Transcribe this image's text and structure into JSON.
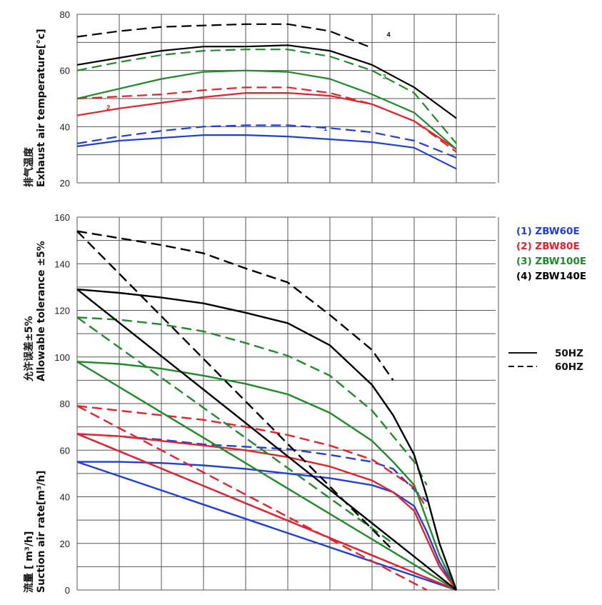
{
  "colors": {
    "1": "#1f3fdc",
    "2": "#e8202a",
    "3": "#1e8a28",
    "4": "#000000"
  },
  "legend": {
    "models": [
      {
        "id": "1",
        "label": "(1)  ZBW60E"
      },
      {
        "id": "2",
        "label": "(2)  ZBW80E"
      },
      {
        "id": "3",
        "label": "(3)  ZBW100E"
      },
      {
        "id": "4",
        "label": "(4)  ZBW140E"
      }
    ],
    "line_styles": [
      {
        "style": "solid",
        "label": "50HZ"
      },
      {
        "style": "dashed",
        "label": "60HZ"
      }
    ]
  },
  "chart_data": [
    {
      "type": "line",
      "title": "",
      "ylabel_cn": "排气温度",
      "ylabel": "Exhaust air temperature[°c]",
      "ylim": [
        20,
        80
      ],
      "yticks": [
        20,
        40,
        60,
        80
      ],
      "x_gridlines": 10,
      "grid": true,
      "curve_labels": [
        "1",
        "2",
        "3",
        "4"
      ],
      "series": [
        {
          "model": "ZBW60E",
          "freq": "50HZ",
          "points": [
            [
              0,
              33
            ],
            [
              1,
              35
            ],
            [
              2,
              36
            ],
            [
              3,
              37
            ],
            [
              4,
              37
            ],
            [
              5,
              36.5
            ],
            [
              6,
              35.5
            ],
            [
              7,
              34.5
            ],
            [
              8,
              32.5
            ],
            [
              9,
              25
            ]
          ]
        },
        {
          "model": "ZBW60E",
          "freq": "60HZ",
          "points": [
            [
              0,
              34
            ],
            [
              1,
              36.5
            ],
            [
              2,
              38.5
            ],
            [
              3,
              40
            ],
            [
              4,
              40.5
            ],
            [
              5,
              40.5
            ],
            [
              6,
              39.5
            ],
            [
              7,
              38
            ],
            [
              8,
              35
            ],
            [
              9,
              29
            ]
          ]
        },
        {
          "model": "ZBW80E",
          "freq": "50HZ",
          "points": [
            [
              0,
              44
            ],
            [
              1,
              46.5
            ],
            [
              2,
              48.5
            ],
            [
              3,
              50.5
            ],
            [
              4,
              52
            ],
            [
              5,
              52
            ],
            [
              6,
              51
            ],
            [
              7,
              48
            ],
            [
              8,
              42
            ],
            [
              9,
              32
            ]
          ]
        },
        {
          "model": "ZBW80E",
          "freq": "60HZ",
          "points": [
            [
              0,
              50
            ],
            [
              0.7,
              50.5
            ],
            [
              2,
              51.5
            ],
            [
              3,
              53
            ],
            [
              4,
              54
            ],
            [
              5,
              54
            ],
            [
              6,
              52
            ],
            [
              7,
              48
            ],
            [
              8,
              42
            ],
            [
              9,
              31
            ]
          ]
        },
        {
          "model": "ZBW100E",
          "freq": "50HZ",
          "points": [
            [
              0,
              50
            ],
            [
              1,
              53.5
            ],
            [
              2,
              57
            ],
            [
              3,
              59.5
            ],
            [
              4,
              60
            ],
            [
              5,
              59.5
            ],
            [
              6,
              57
            ],
            [
              7,
              51.5
            ],
            [
              8,
              45
            ],
            [
              9,
              32
            ]
          ]
        },
        {
          "model": "ZBW100E",
          "freq": "60HZ",
          "points": [
            [
              0,
              60
            ],
            [
              1,
              63
            ],
            [
              2,
              65.5
            ],
            [
              3,
              67
            ],
            [
              4,
              67.5
            ],
            [
              5,
              67.5
            ],
            [
              6,
              65
            ],
            [
              7,
              60
            ],
            [
              8,
              52
            ],
            [
              9,
              34
            ]
          ]
        },
        {
          "model": "ZBW140E",
          "freq": "50HZ",
          "points": [
            [
              0,
              62
            ],
            [
              1,
              64.5
            ],
            [
              2,
              67
            ],
            [
              3,
              68.5
            ],
            [
              4,
              68.5
            ],
            [
              5,
              69
            ],
            [
              6,
              67
            ],
            [
              7,
              62
            ],
            [
              8,
              54
            ],
            [
              9,
              43
            ]
          ]
        },
        {
          "model": "ZBW140E",
          "freq": "60HZ",
          "points": [
            [
              0,
              72
            ],
            [
              1,
              74
            ],
            [
              2,
              75.5
            ],
            [
              3,
              76
            ],
            [
              4,
              76.5
            ],
            [
              5,
              76.5
            ],
            [
              6,
              74
            ],
            [
              7,
              68
            ]
          ]
        }
      ]
    },
    {
      "type": "line",
      "title": "",
      "y2label_cn": "允许误差±5%",
      "y2label": "Allowable tolerance ±5%",
      "ylabel_cn": "流量 [ m³/h]",
      "ylabel": "Suction air rate[m³/h]",
      "ylim": [
        0,
        160
      ],
      "yticks": [
        0,
        20,
        40,
        60,
        80,
        100,
        120,
        140,
        160
      ],
      "x_gridlines": 10,
      "grid": true,
      "series": [
        {
          "model": "ZBW60E",
          "freq": "50HZ",
          "kind": "curve",
          "points": [
            [
              0,
              55
            ],
            [
              1,
              55
            ],
            [
              2,
              54.5
            ],
            [
              3,
              53.5
            ],
            [
              4,
              52
            ],
            [
              5,
              50
            ],
            [
              6,
              48
            ],
            [
              7,
              45
            ],
            [
              7.5,
              42
            ],
            [
              8,
              36
            ],
            [
              8.3,
              25
            ],
            [
              8.6,
              12
            ],
            [
              9,
              0
            ]
          ]
        },
        {
          "model": "ZBW60E",
          "freq": "50HZ",
          "kind": "line",
          "points": [
            [
              0,
              55
            ],
            [
              9,
              0
            ]
          ]
        },
        {
          "model": "ZBW60E",
          "freq": "60HZ",
          "kind": "curve",
          "points": [
            [
              0,
              67
            ],
            [
              1,
              66
            ],
            [
              2,
              64.5
            ],
            [
              3,
              62.5
            ],
            [
              4,
              61.5
            ],
            [
              5,
              60.5
            ],
            [
              6,
              58
            ],
            [
              7,
              55
            ],
            [
              7.5,
              52
            ],
            [
              8,
              43
            ],
            [
              8.3,
              38
            ]
          ]
        },
        {
          "model": "ZBW60E",
          "freq": "60HZ",
          "kind": "line",
          "points": [
            [
              0,
              67
            ],
            [
              9,
              0
            ]
          ]
        },
        {
          "model": "ZBW80E",
          "freq": "50HZ",
          "kind": "curve",
          "points": [
            [
              0,
              67
            ],
            [
              1,
              66
            ],
            [
              2,
              64
            ],
            [
              3,
              62
            ],
            [
              4,
              60
            ],
            [
              5,
              57
            ],
            [
              6,
              53
            ],
            [
              7,
              47
            ],
            [
              7.5,
              42
            ],
            [
              8,
              34
            ],
            [
              8.3,
              22
            ],
            [
              8.6,
              10
            ],
            [
              9,
              0
            ]
          ]
        },
        {
          "model": "ZBW80E",
          "freq": "50HZ",
          "kind": "line",
          "points": [
            [
              0,
              67
            ],
            [
              9,
              0
            ]
          ]
        },
        {
          "model": "ZBW80E",
          "freq": "60HZ",
          "kind": "curve",
          "points": [
            [
              0,
              79
            ],
            [
              1,
              77
            ],
            [
              2,
              75
            ],
            [
              3,
              73
            ],
            [
              4,
              70
            ],
            [
              5,
              66.5
            ],
            [
              6,
              62
            ],
            [
              7,
              56
            ],
            [
              7.5,
              50
            ],
            [
              8,
              44
            ],
            [
              8.3,
              35
            ]
          ]
        },
        {
          "model": "ZBW80E",
          "freq": "60HZ",
          "kind": "line",
          "points": [
            [
              0,
              79
            ],
            [
              8.3,
              0
            ]
          ]
        },
        {
          "model": "ZBW100E",
          "freq": "50HZ",
          "kind": "curve",
          "points": [
            [
              0,
              98
            ],
            [
              1,
              97
            ],
            [
              2,
              95
            ],
            [
              3,
              92
            ],
            [
              4,
              88.5
            ],
            [
              5,
              84
            ],
            [
              6,
              76
            ],
            [
              7,
              64
            ],
            [
              7.5,
              55
            ],
            [
              8,
              45
            ],
            [
              8.3,
              30
            ],
            [
              8.6,
              15
            ],
            [
              9,
              0
            ]
          ]
        },
        {
          "model": "ZBW100E",
          "freq": "50HZ",
          "kind": "line",
          "points": [
            [
              0,
              98
            ],
            [
              9,
              0
            ]
          ]
        },
        {
          "model": "ZBW100E",
          "freq": "60HZ",
          "kind": "curve",
          "points": [
            [
              0,
              117
            ],
            [
              1,
              116
            ],
            [
              2,
              114
            ],
            [
              3,
              111
            ],
            [
              4,
              106
            ],
            [
              5,
              100.5
            ],
            [
              6,
              92
            ],
            [
              7,
              77
            ],
            [
              7.5,
              66
            ],
            [
              8,
              55
            ],
            [
              8.3,
              45
            ]
          ]
        },
        {
          "model": "ZBW100E",
          "freq": "60HZ",
          "kind": "line",
          "points": [
            [
              0,
              117
            ],
            [
              7.5,
              20
            ]
          ]
        },
        {
          "model": "ZBW140E",
          "freq": "50HZ",
          "kind": "curve",
          "points": [
            [
              0,
              129
            ],
            [
              1,
              127.5
            ],
            [
              2,
              125.5
            ],
            [
              3,
              123
            ],
            [
              4,
              119
            ],
            [
              5,
              114.5
            ],
            [
              6,
              105
            ],
            [
              7,
              88
            ],
            [
              7.5,
              75
            ],
            [
              8,
              58
            ],
            [
              8.3,
              40
            ],
            [
              8.6,
              20
            ],
            [
              9,
              0
            ]
          ]
        },
        {
          "model": "ZBW140E",
          "freq": "50HZ",
          "kind": "line",
          "points": [
            [
              0,
              129
            ],
            [
              9,
              0
            ]
          ]
        },
        {
          "model": "ZBW140E",
          "freq": "60HZ",
          "kind": "curve",
          "points": [
            [
              0,
              154
            ],
            [
              1,
              151
            ],
            [
              2,
              148
            ],
            [
              3,
              144.5
            ],
            [
              4,
              138
            ],
            [
              5,
              132
            ],
            [
              6,
              118
            ],
            [
              7,
              103
            ],
            [
              7.5,
              90
            ]
          ]
        },
        {
          "model": "ZBW140E",
          "freq": "60HZ",
          "kind": "line",
          "points": [
            [
              0,
              154
            ],
            [
              7.5,
              17
            ]
          ]
        }
      ]
    }
  ]
}
